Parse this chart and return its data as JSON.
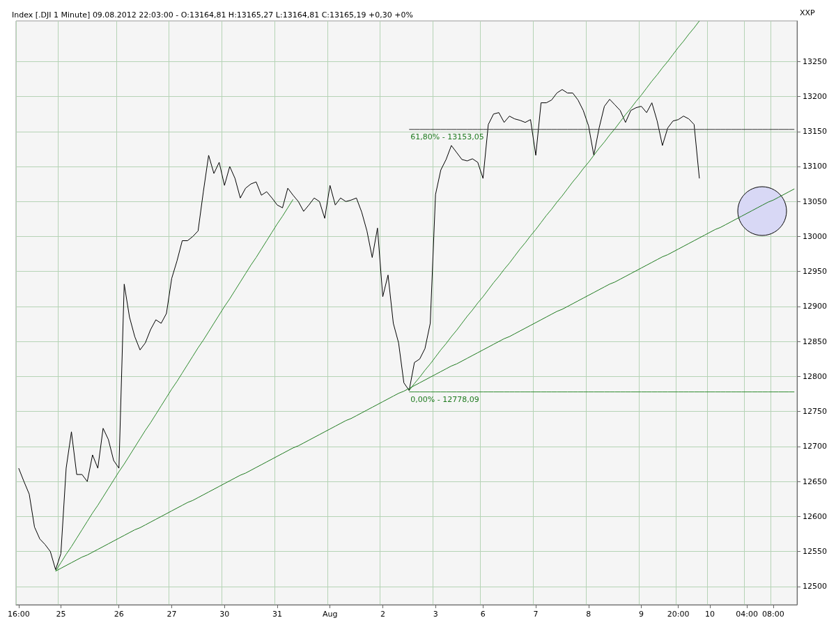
{
  "chart_data": {
    "type": "line",
    "title": "Index [.DJI 1 Minute] 09.08.2012 22:03:00 - O:13164,81 H:13165,27 L:13164,81 C:13165,19 +0,30 +0%",
    "ylabel": "XXP",
    "categories": [
      "16:00",
      null,
      null,
      null,
      null,
      null,
      null,
      null,
      "25",
      null,
      null,
      null,
      null,
      null,
      null,
      null,
      null,
      null,
      null,
      "26",
      null,
      null,
      null,
      null,
      null,
      null,
      null,
      null,
      null,
      "27",
      null,
      null,
      null,
      null,
      null,
      null,
      null,
      null,
      null,
      "30",
      null,
      null,
      null,
      null,
      null,
      null,
      null,
      null,
      null,
      "31",
      null,
      null,
      null,
      null,
      null,
      null,
      null,
      null,
      null,
      "Aug",
      null,
      null,
      null,
      null,
      null,
      null,
      null,
      null,
      null,
      "2",
      null,
      null,
      null,
      null,
      null,
      null,
      null,
      null,
      null,
      "3",
      null,
      null,
      null,
      null,
      null,
      null,
      null,
      null,
      "6",
      null,
      null,
      null,
      null,
      null,
      null,
      null,
      null,
      null,
      "7",
      null,
      null,
      null,
      null,
      null,
      null,
      null,
      null,
      null,
      "8",
      null,
      null,
      null,
      null,
      null,
      null,
      null,
      null,
      null,
      "9",
      null,
      null,
      null,
      null,
      null,
      null,
      "20:00",
      null,
      null,
      null,
      null,
      null,
      "10",
      null,
      null,
      null,
      null,
      null,
      null,
      "04:00",
      null,
      null,
      null,
      null,
      "08:00",
      null,
      null,
      null,
      null
    ],
    "ylim": [
      12474,
      13308
    ],
    "yticks": [
      12500,
      12550,
      12600,
      12650,
      12700,
      12750,
      12800,
      12850,
      12900,
      12950,
      13000,
      13050,
      13100,
      13150,
      13200,
      13250
    ],
    "grid": true,
    "marker": "none",
    "line_style": "solid",
    "series": [
      {
        "color": "#000000",
        "values": [
          12669,
          12650,
          12632,
          12585,
          12568,
          12560,
          12550,
          12524,
          12547,
          12669,
          12721,
          12660,
          12660,
          12650,
          12688,
          12669,
          12726,
          12710,
          12680,
          12669,
          12932,
          12885,
          12857,
          12838,
          12848,
          12867,
          12881,
          12876,
          12890,
          12940,
          12965,
          12994,
          12994,
          13000,
          13008,
          13064,
          13116,
          13090,
          13106,
          13073,
          13100,
          13083,
          13055,
          13069,
          13075,
          13078,
          13059,
          13064,
          13055,
          13045,
          13041,
          13069,
          13059,
          13050,
          13036,
          13045,
          13055,
          13050,
          13026,
          13073,
          13045,
          13055,
          13050,
          13052,
          13055,
          13035,
          13008,
          12970,
          13012,
          12914,
          12945,
          12876,
          12848,
          12791,
          12780,
          12820,
          12825,
          12840,
          12876,
          13060,
          13095,
          13110,
          13130,
          13120,
          13110,
          13108,
          13111,
          13106,
          13083,
          13160,
          13175,
          13177,
          13163,
          13172,
          13168,
          13166,
          13163,
          13167,
          13116,
          13191,
          13191,
          13195,
          13205,
          13210,
          13205,
          13205,
          13195,
          13180,
          13158,
          13116,
          13155,
          13186,
          13196,
          13188,
          13180,
          13163,
          13180,
          13184,
          13186,
          13177,
          13191,
          13165,
          13130,
          13155,
          13165,
          13167,
          13172,
          13168,
          13160,
          13083,
          null,
          null,
          null,
          null,
          null,
          null,
          null,
          null,
          null,
          null,
          null,
          null,
          null,
          null,
          null,
          null,
          null,
          null
        ]
      },
      {
        "color": "#1e7a1e",
        "values": [
          null,
          null,
          null,
          null,
          null,
          null,
          null,
          12522,
          12526,
          12530,
          12534,
          12538,
          12542,
          12545,
          12549,
          12553,
          12557,
          12561,
          12565,
          12569,
          12573,
          12577,
          12581,
          12584,
          12588,
          12592,
          12596,
          12600,
          12604,
          12608,
          12612,
          12616,
          12620,
          12623,
          12627,
          12631,
          12635,
          12639,
          12643,
          12647,
          12651,
          12655,
          12659,
          12662,
          12666,
          12670,
          12674,
          12678,
          12682,
          12686,
          12690,
          12694,
          12698,
          12701,
          12705,
          12709,
          12713,
          12717,
          12721,
          12725,
          12729,
          12733,
          12737,
          12740,
          12744,
          12748,
          12752,
          12756,
          12760,
          12764,
          12768,
          12772,
          12776,
          12779,
          12783,
          12787,
          12791,
          12795,
          12799,
          12803,
          12807,
          12811,
          12815,
          12818,
          12822,
          12826,
          12830,
          12834,
          12838,
          12842,
          12846,
          12850,
          12854,
          12857,
          12861,
          12865,
          12869,
          12873,
          12877,
          12881,
          12885,
          12889,
          12893,
          12896,
          12900,
          12904,
          12908,
          12912,
          12916,
          12920,
          12924,
          12928,
          12932,
          12935,
          12939,
          12943,
          12947,
          12951,
          12955,
          12959,
          12963,
          12967,
          12971,
          12974,
          12978,
          12982,
          12986,
          12990,
          12994,
          12998,
          13002,
          13006,
          13010,
          13013,
          13017,
          13021,
          13025,
          13029,
          13033,
          13037,
          13041,
          13045,
          13049,
          13052,
          13056,
          13060,
          13064,
          13068
        ]
      },
      {
        "color": "#2e8b2e",
        "values": [
          null,
          null,
          null,
          null,
          null,
          null,
          null,
          12522,
          12534,
          12546,
          12557,
          12569,
          12581,
          12593,
          12605,
          12616,
          12628,
          12640,
          12652,
          12664,
          12675,
          12687,
          12699,
          12711,
          12723,
          12734,
          12746,
          12758,
          12770,
          12782,
          12793,
          12805,
          12817,
          12829,
          12841,
          12852,
          12864,
          12876,
          12888,
          12900,
          12911,
          12923,
          12935,
          12947,
          12959,
          12970,
          12982,
          12994,
          13006,
          13018,
          13029,
          13041,
          13053,
          null,
          null,
          null,
          null,
          null,
          null,
          null,
          null,
          null,
          null,
          null,
          null,
          null,
          null,
          null,
          null,
          null,
          null,
          null,
          null,
          null,
          null,
          null,
          null,
          null,
          null,
          null,
          null,
          null,
          null,
          null,
          null,
          null,
          null,
          null,
          null,
          null,
          null,
          null,
          null,
          null,
          null,
          null,
          null,
          null,
          null,
          null,
          null,
          null,
          null,
          null,
          null,
          null,
          null,
          null,
          null,
          null,
          null,
          null,
          null,
          null,
          null,
          null,
          null,
          null,
          null,
          null,
          null,
          null,
          null,
          null,
          null,
          null,
          null,
          null,
          null,
          null,
          null,
          null,
          null,
          null,
          null,
          null,
          null,
          null,
          null,
          null,
          null,
          null,
          null,
          null,
          null,
          null,
          null,
          null
        ]
      },
      {
        "color": "#2e8b2e",
        "values": [
          null,
          null,
          null,
          null,
          null,
          null,
          null,
          null,
          null,
          null,
          null,
          null,
          null,
          null,
          null,
          null,
          null,
          null,
          null,
          null,
          null,
          null,
          null,
          null,
          null,
          null,
          null,
          null,
          null,
          null,
          null,
          null,
          null,
          null,
          null,
          null,
          null,
          null,
          null,
          null,
          null,
          null,
          null,
          null,
          null,
          null,
          null,
          null,
          null,
          null,
          null,
          null,
          null,
          null,
          null,
          null,
          null,
          null,
          null,
          null,
          null,
          null,
          null,
          null,
          null,
          null,
          null,
          null,
          null,
          null,
          null,
          null,
          null,
          null,
          12780,
          12790,
          12799,
          12809,
          12818,
          12828,
          12838,
          12847,
          12857,
          12866,
          12876,
          12886,
          12895,
          12905,
          12914,
          12924,
          12934,
          12943,
          12953,
          12962,
          12972,
          12982,
          12991,
          13001,
          13010,
          13020,
          13030,
          13039,
          13049,
          13058,
          13068,
          13078,
          13087,
          13097,
          13106,
          13116,
          13126,
          13135,
          13145,
          13154,
          13164,
          13174,
          13183,
          13193,
          13202,
          13212,
          13222,
          13231,
          13241,
          13250,
          13260,
          13270,
          13279,
          13289,
          13298,
          13308,
          null,
          null,
          null,
          null,
          null,
          null,
          null,
          null,
          null,
          null,
          null,
          null,
          null,
          null,
          null,
          null,
          null,
          null
        ]
      },
      {
        "name": "61,80% - 13153,05",
        "color": "#333333",
        "values": [
          null,
          null,
          null,
          null,
          null,
          null,
          null,
          null,
          null,
          null,
          null,
          null,
          null,
          null,
          null,
          null,
          null,
          null,
          null,
          null,
          null,
          null,
          null,
          null,
          null,
          null,
          null,
          null,
          null,
          null,
          null,
          null,
          null,
          null,
          null,
          null,
          null,
          null,
          null,
          null,
          null,
          null,
          null,
          null,
          null,
          null,
          null,
          null,
          null,
          null,
          null,
          null,
          null,
          null,
          null,
          null,
          null,
          null,
          null,
          null,
          null,
          null,
          null,
          null,
          null,
          null,
          null,
          null,
          null,
          null,
          null,
          null,
          null,
          null,
          13153,
          13153,
          13153,
          13153,
          13153,
          13153,
          13153,
          13153,
          13153,
          13153,
          13153,
          13153,
          13153,
          13153,
          13153,
          13153,
          13153,
          13153,
          13153,
          13153,
          13153,
          13153,
          13153,
          13153,
          13153,
          13153,
          13153,
          13153,
          13153,
          13153,
          13153,
          13153,
          13153,
          13153,
          13153,
          13153,
          13153,
          13153,
          13153,
          13153,
          13153,
          13153,
          13153,
          13153,
          13153,
          13153,
          13153,
          13153,
          13153,
          13153,
          13153,
          13153,
          13153,
          13153,
          13153,
          13153,
          13153,
          13153,
          13153,
          13153,
          13153,
          13153,
          13153,
          13153,
          13153,
          13153,
          13153,
          13153,
          13153,
          13153,
          13153,
          13153,
          13153,
          13153
        ]
      },
      {
        "name": "0,00% - 12778,09",
        "color": "#2e8b2e",
        "values": [
          null,
          null,
          null,
          null,
          null,
          null,
          null,
          null,
          null,
          null,
          null,
          null,
          null,
          null,
          null,
          null,
          null,
          null,
          null,
          null,
          null,
          null,
          null,
          null,
          null,
          null,
          null,
          null,
          null,
          null,
          null,
          null,
          null,
          null,
          null,
          null,
          null,
          null,
          null,
          null,
          null,
          null,
          null,
          null,
          null,
          null,
          null,
          null,
          null,
          null,
          null,
          null,
          null,
          null,
          null,
          null,
          null,
          null,
          null,
          null,
          null,
          null,
          null,
          null,
          null,
          null,
          null,
          null,
          null,
          null,
          null,
          null,
          null,
          null,
          12778,
          12778,
          12778,
          12778,
          12778,
          12778,
          12778,
          12778,
          12778,
          12778,
          12778,
          12778,
          12778,
          12778,
          12778,
          12778,
          12778,
          12778,
          12778,
          12778,
          12778,
          12778,
          12778,
          12778,
          12778,
          12778,
          12778,
          12778,
          12778,
          12778,
          12778,
          12778,
          12778,
          12778,
          12778,
          12778,
          12778,
          12778,
          12778,
          12778,
          12778,
          12778,
          12778,
          12778,
          12778,
          12778,
          12778,
          12778,
          12778,
          12778,
          12778,
          12778,
          12778,
          12778,
          12778,
          12778,
          12778,
          12778,
          12778,
          12778,
          12778,
          12778,
          12778,
          12778,
          12778,
          12778,
          12778,
          12778,
          12778,
          12778,
          12778,
          12778,
          12778,
          12778
        ]
      }
    ]
  }
}
